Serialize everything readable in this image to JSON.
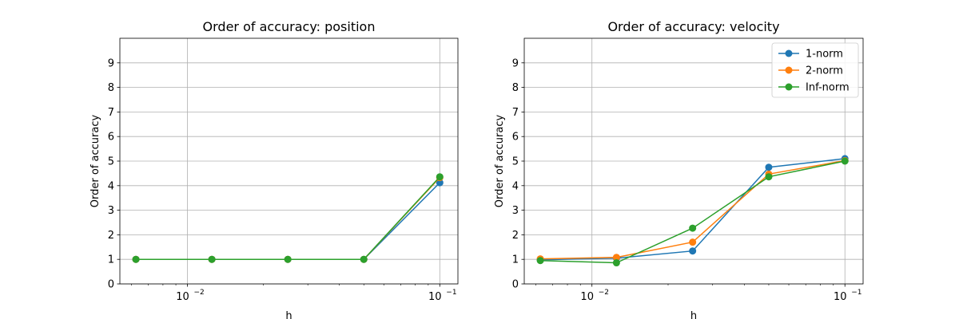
{
  "colors": {
    "series": [
      "#1f77b4",
      "#ff7f0e",
      "#2ca02c"
    ],
    "grid": "#b0b0b0",
    "axes": "#000000"
  },
  "chart_data": [
    {
      "type": "line",
      "title": "Order of accuracy: position",
      "xlabel": "h",
      "ylabel": "Order of accuracy",
      "xscale": "log",
      "xlim": [
        0.0054,
        0.118
      ],
      "ylim": [
        0,
        10
      ],
      "yticks": [
        0,
        1,
        2,
        3,
        4,
        5,
        6,
        7,
        8,
        9
      ],
      "xticks": [
        {
          "value": 0.01,
          "base": "10",
          "exp": "−2"
        },
        {
          "value": 0.1,
          "base": "10",
          "exp": "−1"
        }
      ],
      "grid": true,
      "legend": null,
      "x": [
        0.00625,
        0.0125,
        0.025,
        0.05,
        0.1
      ],
      "series": [
        {
          "values": [
            1.0,
            1.0,
            1.0,
            1.0,
            4.12
          ]
        },
        {
          "values": [
            1.0,
            1.0,
            1.0,
            1.0,
            4.33
          ]
        },
        {
          "values": [
            1.0,
            1.0,
            1.0,
            1.0,
            4.36
          ]
        }
      ]
    },
    {
      "type": "line",
      "title": "Order of accuracy: velocity",
      "xlabel": "h",
      "ylabel": "Order of accuracy",
      "xscale": "log",
      "xlim": [
        0.0054,
        0.118
      ],
      "ylim": [
        0,
        10
      ],
      "yticks": [
        0,
        1,
        2,
        3,
        4,
        5,
        6,
        7,
        8,
        9
      ],
      "xticks": [
        {
          "value": 0.01,
          "base": "10",
          "exp": "−2"
        },
        {
          "value": 0.1,
          "base": "10",
          "exp": "−1"
        }
      ],
      "grid": true,
      "legend": "top-right",
      "x": [
        0.00625,
        0.0125,
        0.025,
        0.05,
        0.1
      ],
      "series": [
        {
          "name": "1-norm",
          "values": [
            0.98,
            1.05,
            1.34,
            4.75,
            5.1
          ]
        },
        {
          "name": "2-norm",
          "values": [
            1.02,
            1.08,
            1.7,
            4.47,
            5.02
          ]
        },
        {
          "name": "Inf-norm",
          "values": [
            0.95,
            0.86,
            2.27,
            4.36,
            5.0
          ]
        }
      ]
    }
  ]
}
